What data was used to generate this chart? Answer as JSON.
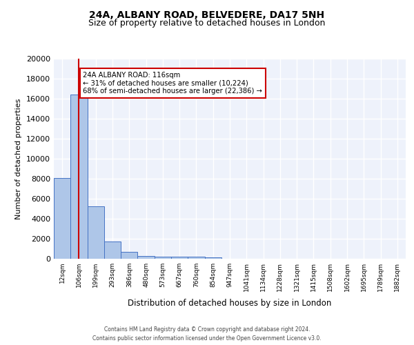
{
  "title1": "24A, ALBANY ROAD, BELVEDERE, DA17 5NH",
  "title2": "Size of property relative to detached houses in London",
  "xlabel": "Distribution of detached houses by size in London",
  "ylabel": "Number of detached properties",
  "bin_labels": [
    "12sqm",
    "106sqm",
    "199sqm",
    "293sqm",
    "386sqm",
    "480sqm",
    "573sqm",
    "667sqm",
    "760sqm",
    "854sqm",
    "947sqm",
    "1041sqm",
    "1134sqm",
    "1228sqm",
    "1321sqm",
    "1415sqm",
    "1508sqm",
    "1602sqm",
    "1695sqm",
    "1789sqm",
    "1882sqm"
  ],
  "bar_heights": [
    8100,
    16400,
    5250,
    1750,
    700,
    300,
    225,
    175,
    175,
    150,
    0,
    0,
    0,
    0,
    0,
    0,
    0,
    0,
    0,
    0,
    0
  ],
  "bar_color": "#aec6e8",
  "bar_edge_color": "#4472c4",
  "background_color": "#eef2fb",
  "grid_color": "#ffffff",
  "vline_x": 1,
  "vline_color": "#cc0000",
  "annotation_text": "24A ALBANY ROAD: 116sqm\n← 31% of detached houses are smaller (10,224)\n68% of semi-detached houses are larger (22,386) →",
  "annotation_box_color": "#ffffff",
  "annotation_box_edge": "#cc0000",
  "ylim": [
    0,
    20000
  ],
  "yticks": [
    0,
    2000,
    4000,
    6000,
    8000,
    10000,
    12000,
    14000,
    16000,
    18000,
    20000
  ],
  "footer1": "Contains HM Land Registry data © Crown copyright and database right 2024.",
  "footer2": "Contains public sector information licensed under the Open Government Licence v3.0."
}
